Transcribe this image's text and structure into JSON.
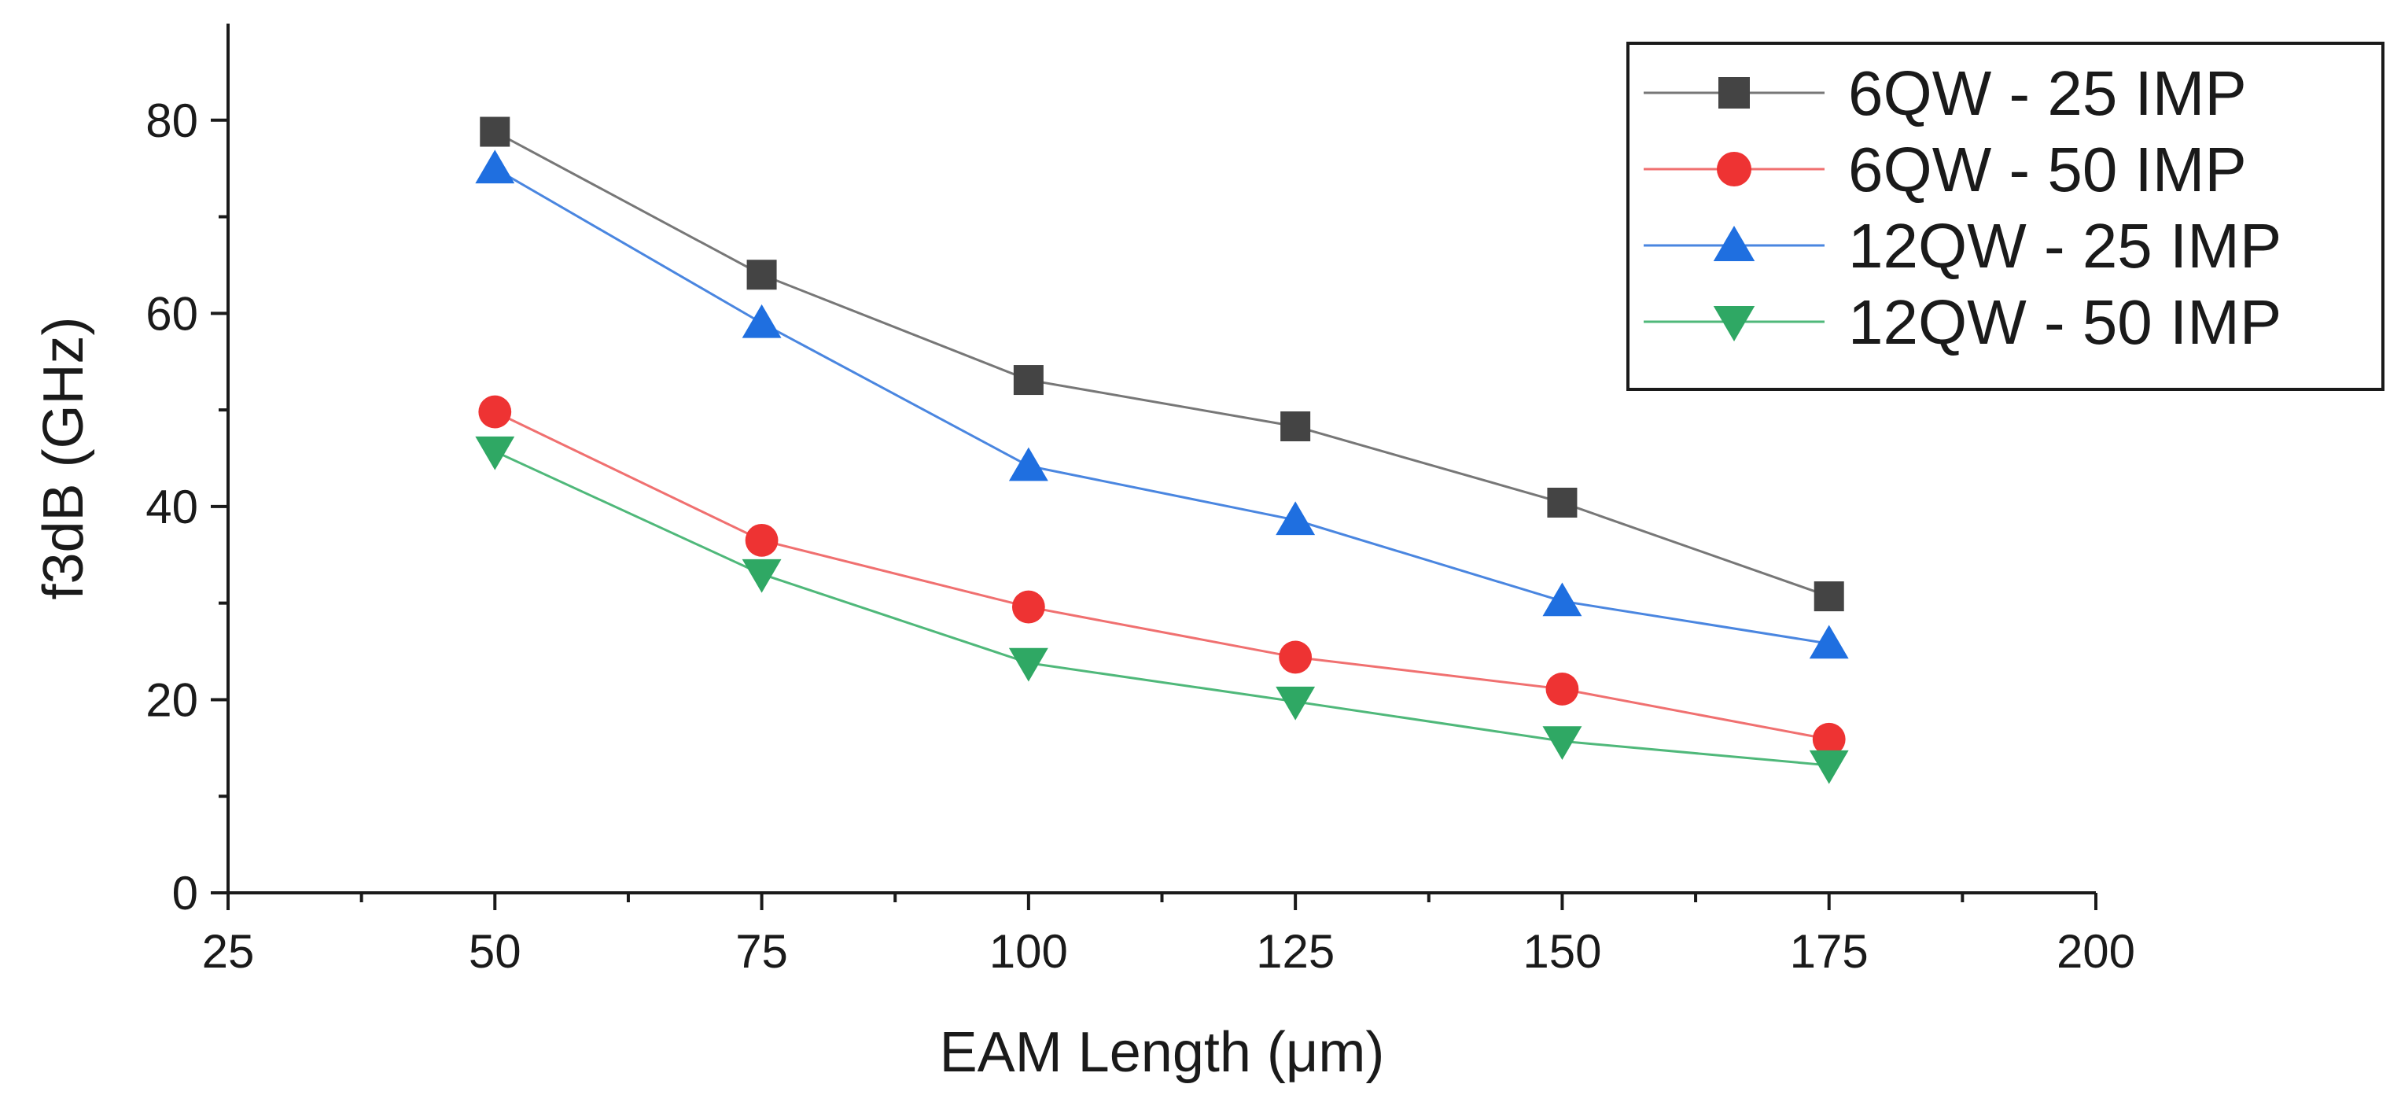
{
  "chart_data": {
    "type": "line",
    "title": "",
    "xlabel": "EAM Length (μm)",
    "ylabel": "f3dB (GHz)",
    "xlim": [
      25,
      200
    ],
    "ylim": [
      0,
      90
    ],
    "x": [
      50,
      75,
      100,
      125,
      150,
      175
    ],
    "xticks": [
      25,
      50,
      75,
      100,
      125,
      150,
      175,
      200
    ],
    "yticks": [
      0,
      20,
      40,
      60,
      80
    ],
    "xtick_labels": [
      "25",
      "50",
      "75",
      "100",
      "125",
      "150",
      "175",
      "200"
    ],
    "ytick_labels": [
      "0",
      "20",
      "40",
      "60",
      "80"
    ],
    "legend_position": "top-right",
    "grid": false,
    "series": [
      {
        "name": "6QW - 25 IMP",
        "marker": "square",
        "line_color": "#777777",
        "marker_color": "#444444",
        "values": [
          78.8,
          64.0,
          53.1,
          48.3,
          40.4,
          30.7
        ]
      },
      {
        "name": "6QW - 50 IMP",
        "marker": "circle",
        "line_color": "#f07070",
        "marker_color": "#ee3333",
        "values": [
          49.8,
          36.5,
          29.6,
          24.4,
          21.1,
          15.9
        ]
      },
      {
        "name": "12QW - 25 IMP",
        "marker": "triangle-up",
        "line_color": "#4a86e0",
        "marker_color": "#1f6fe0",
        "values": [
          75.0,
          59.0,
          44.2,
          38.6,
          30.2,
          25.8
        ]
      },
      {
        "name": "12QW - 50 IMP",
        "marker": "triangle-down",
        "line_color": "#4fb87a",
        "marker_color": "#2fa864",
        "values": [
          45.7,
          33.0,
          23.8,
          19.8,
          15.7,
          13.2
        ]
      }
    ]
  }
}
